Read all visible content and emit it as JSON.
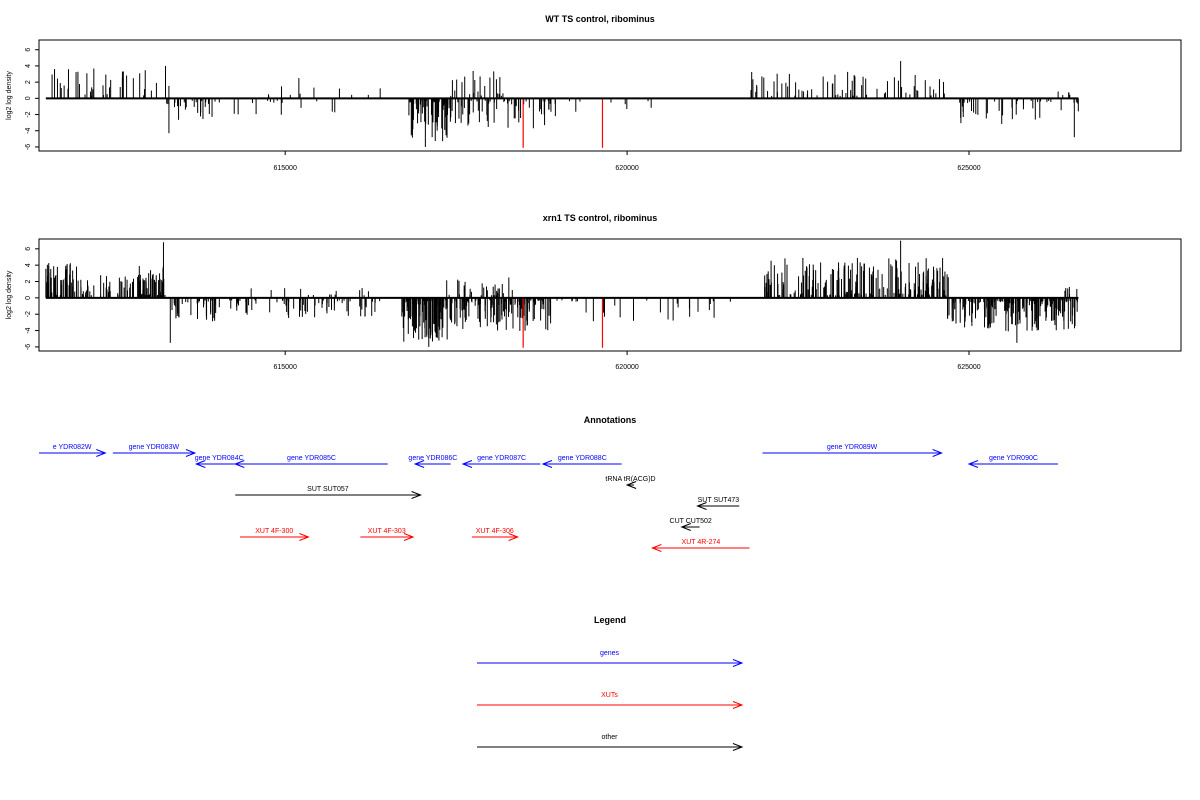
{
  "chart_data": [
    {
      "type": "bar",
      "title": "WT TS control, ribominus",
      "ylabel": "log2 log density",
      "xlim": [
        611400,
        628100
      ],
      "ylim": [
        -6.5,
        7.2
      ],
      "xticks": [
        615000,
        620000,
        625000
      ],
      "xtick_labels": [
        "615000",
        "620000",
        "625000"
      ],
      "yticks": [
        -6,
        -4,
        -2,
        0,
        2,
        4,
        6
      ],
      "ytick_labels": [
        "-6",
        "-4",
        "-2",
        "0",
        "2",
        "4",
        "6"
      ],
      "grid": false,
      "baseline": {
        "x": [
          611500,
          626600
        ],
        "y": 0
      },
      "highlight_bars": {
        "color": "#ff0000",
        "x": [
          618480,
          619640
        ],
        "y": -6.1
      },
      "density": {
        "seed": 7,
        "positive": [
          {
            "x": [
              611500,
              613350
            ],
            "count": 38,
            "max": 3.4,
            "peak": {
              "x": 613250,
              "y": 4.0
            }
          },
          {
            "x": [
              614300,
              616500
            ],
            "count": 10,
            "max": 1.6,
            "peak": {
              "x": 615200,
              "y": 2.5
            }
          },
          {
            "x": [
              617400,
              618200
            ],
            "count": 22,
            "max": 3.1
          },
          {
            "x": [
              621800,
              624700
            ],
            "count": 70,
            "max": 3.0,
            "peak": {
              "x": 624000,
              "y": 4.6
            }
          },
          {
            "x": [
              626300,
              626500
            ],
            "count": 5,
            "max": 2.2
          }
        ],
        "negative": [
          {
            "x": [
              613250,
              614000
            ],
            "count": 25,
            "max": 2.5,
            "peak": {
              "x": 613300,
              "y": -4.3
            }
          },
          {
            "x": [
              614000,
              616000
            ],
            "count": 15,
            "max": 1.8
          },
          {
            "x": [
              616800,
              617400
            ],
            "count": 70,
            "max": 5.0,
            "peak": {
              "x": 617050,
              "y": -6.0
            }
          },
          {
            "x": [
              617400,
              618900
            ],
            "count": 60,
            "max": 3.5
          },
          {
            "x": [
              618900,
              620600
            ],
            "count": 10,
            "max": 2.0
          },
          {
            "x": [
              624800,
              626600
            ],
            "count": 40,
            "max": 3.0,
            "peak": {
              "x": 626540,
              "y": -4.8
            }
          }
        ]
      }
    },
    {
      "type": "bar",
      "title": "xrn1 TS control, ribominus",
      "ylabel": "log2 log density",
      "xlim": [
        611400,
        628100
      ],
      "ylim": [
        -6.5,
        7.2
      ],
      "xticks": [
        615000,
        620000,
        625000
      ],
      "xtick_labels": [
        "615000",
        "620000",
        "625000"
      ],
      "yticks": [
        -6,
        -4,
        -2,
        0,
        2,
        4,
        6
      ],
      "ytick_labels": [
        "-6",
        "-4",
        "-2",
        "0",
        "2",
        "4",
        "6"
      ],
      "grid": false,
      "baseline": {
        "x": [
          611500,
          626600
        ],
        "y": 0
      },
      "highlight_bars": {
        "color": "#ff0000",
        "x": [
          618480,
          619640
        ],
        "y": -6.1
      },
      "density": {
        "seed": 23,
        "positive": [
          {
            "x": [
              611500,
              612050
            ],
            "count": 60,
            "max": 4.2
          },
          {
            "x": [
              612050,
              612850
            ],
            "count": 35,
            "max": 2.5
          },
          {
            "x": [
              612850,
              613250
            ],
            "count": 55,
            "max": 3.6,
            "peak": {
              "x": 613220,
              "y": 6.8
            }
          },
          {
            "x": [
              614500,
              616400
            ],
            "count": 14,
            "max": 1.0
          },
          {
            "x": [
              617300,
              618600
            ],
            "count": 30,
            "max": 2.4
          },
          {
            "x": [
              622000,
              624700
            ],
            "count": 210,
            "max": 4.6,
            "peak": {
              "x": 624000,
              "y": 7.0
            }
          },
          {
            "x": [
              626400,
              626600
            ],
            "count": 6,
            "max": 1.2
          }
        ],
        "negative": [
          {
            "x": [
              613250,
              614000
            ],
            "count": 35,
            "max": 3.0,
            "peak": {
              "x": 613320,
              "y": -5.5
            }
          },
          {
            "x": [
              614000,
              616400
            ],
            "count": 70,
            "max": 2.2
          },
          {
            "x": [
              616700,
              617400
            ],
            "count": 110,
            "max": 5.2,
            "peak": {
              "x": 617100,
              "y": -6.0
            }
          },
          {
            "x": [
              617400,
              618900
            ],
            "count": 120,
            "max": 3.8
          },
          {
            "x": [
              618900,
              621800
            ],
            "count": 28,
            "max": 2.6
          },
          {
            "x": [
              624650,
              626600
            ],
            "count": 190,
            "max": 3.8,
            "peak": {
              "x": 625700,
              "y": -5.5
            }
          }
        ]
      }
    }
  ],
  "annotations": {
    "title": "Annotations",
    "items": [
      {
        "label": "e YDR082W",
        "x1": 611400,
        "x2": 612370,
        "row": 0,
        "dir": "right",
        "color": "#0000ff"
      },
      {
        "label": "gene YDR083W",
        "x1": 612480,
        "x2": 613680,
        "row": 0,
        "dir": "right",
        "color": "#0000ff"
      },
      {
        "label": "gene YDR084C",
        "x1": 613700,
        "x2": 614370,
        "row": 1,
        "dir": "left",
        "color": "#0000ff"
      },
      {
        "label": "gene YDR085C",
        "x1": 614270,
        "x2": 616500,
        "row": 1,
        "dir": "left",
        "color": "#0000ff"
      },
      {
        "label": "gene YDR086C",
        "x1": 616900,
        "x2": 617420,
        "row": 1,
        "dir": "left",
        "color": "#0000ff"
      },
      {
        "label": "gene YDR087C",
        "x1": 617600,
        "x2": 618730,
        "row": 1,
        "dir": "left",
        "color": "#0000ff"
      },
      {
        "label": "gene YDR088C",
        "x1": 618770,
        "x2": 619920,
        "row": 1,
        "dir": "left",
        "color": "#0000ff"
      },
      {
        "label": "gene YDR089W",
        "x1": 621980,
        "x2": 624600,
        "row": 0,
        "dir": "right",
        "color": "#0000ff"
      },
      {
        "label": "gene YDR090C",
        "x1": 625000,
        "x2": 626300,
        "row": 1,
        "dir": "left",
        "color": "#0000ff"
      },
      {
        "label": "tRNA tR(ACG)D",
        "x1": 620000,
        "x2": 620100,
        "row": 2,
        "dir": "left",
        "color": "#000000"
      },
      {
        "label": "SUT SUT057",
        "x1": 614270,
        "x2": 616980,
        "row": 3,
        "dir": "right",
        "color": "#000000"
      },
      {
        "label": "SUT SUT473",
        "x1": 621030,
        "x2": 621640,
        "row": 4,
        "dir": "left",
        "color": "#000000"
      },
      {
        "label": "CUT CUT502",
        "x1": 620800,
        "x2": 621060,
        "row": 5,
        "dir": "left",
        "color": "#000000"
      },
      {
        "label": "XUT 4F-300",
        "x1": 614340,
        "x2": 615340,
        "row": 6,
        "dir": "right",
        "color": "#ff0000"
      },
      {
        "label": "XUT 4F-303",
        "x1": 616100,
        "x2": 616870,
        "row": 6,
        "dir": "right",
        "color": "#ff0000"
      },
      {
        "label": "XUT 4F-306",
        "x1": 617730,
        "x2": 618400,
        "row": 6,
        "dir": "right",
        "color": "#ff0000"
      },
      {
        "label": "XUT 4R-274",
        "x1": 620370,
        "x2": 621790,
        "row": 7,
        "dir": "left",
        "color": "#ff0000"
      }
    ]
  },
  "legend": {
    "title": "Legend",
    "items": [
      {
        "label": "genes",
        "color": "#0000ff"
      },
      {
        "label": "XUTs",
        "color": "#ff0000"
      },
      {
        "label": "other",
        "color": "#000000"
      }
    ]
  }
}
